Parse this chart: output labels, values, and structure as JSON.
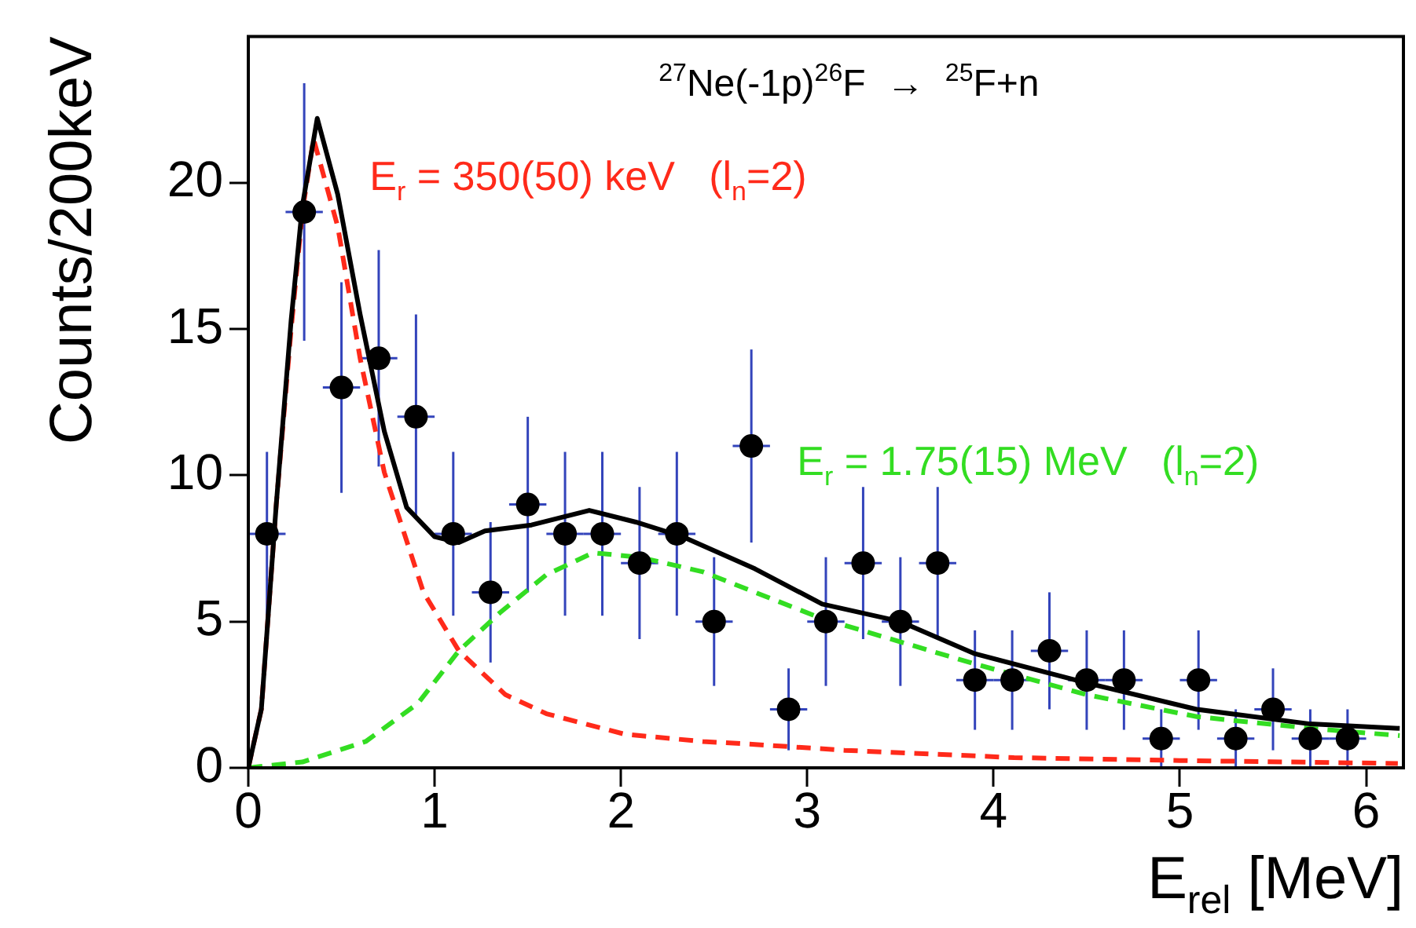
{
  "chart_data": {
    "type": "scatter",
    "title": "$^{27}$Ne(-1p)$^{26}$F  →  $^{25}$F+n",
    "xlabel": "E$_{rel}$ [MeV]",
    "ylabel": "Counts/200keV",
    "xlim": [
      0,
      6.2
    ],
    "ylim": [
      0,
      25
    ],
    "xticks": [
      0,
      1,
      2,
      3,
      4,
      5,
      6
    ],
    "yticks": [
      0,
      5,
      10,
      15,
      20
    ],
    "grid": false,
    "series": [
      {
        "type": "scatter",
        "marker": "circle",
        "color": "#000000",
        "x": [
          0.1,
          0.3,
          0.5,
          0.7,
          0.9,
          1.1,
          1.3,
          1.5,
          1.7,
          1.9,
          2.1,
          2.3,
          2.5,
          2.7,
          2.9,
          3.1,
          3.3,
          3.5,
          3.7,
          3.9,
          4.1,
          4.3,
          4.5,
          4.7,
          4.9,
          5.1,
          5.3,
          5.5,
          5.7,
          5.9
        ],
        "values": [
          8,
          19,
          13,
          14,
          12,
          8,
          6,
          9,
          8,
          8,
          7,
          8,
          5,
          11,
          2,
          5,
          7,
          5,
          7,
          3,
          3,
          4,
          3,
          3,
          1,
          3,
          1,
          2,
          1,
          1
        ],
        "errors": [
          2.8,
          4.4,
          3.6,
          3.7,
          3.5,
          2.8,
          2.4,
          3,
          2.8,
          2.8,
          2.6,
          2.8,
          2.2,
          3.3,
          1.4,
          2.2,
          2.6,
          2.2,
          2.6,
          1.7,
          1.7,
          2,
          1.7,
          1.7,
          1,
          1.7,
          1,
          1.4,
          1,
          1
        ],
        "xerrors": [
          0.1,
          0.1,
          0.1,
          0.1,
          0.1,
          0.1,
          0.1,
          0.1,
          0.1,
          0.1,
          0.1,
          0.1,
          0.1,
          0.1,
          0.1,
          0.1,
          0.1,
          0.1,
          0.1,
          0.1,
          0.1,
          0.1,
          0.1,
          0.1,
          0.1,
          0.1,
          0.1,
          0.1,
          0.1,
          0.1
        ]
      },
      {
        "type": "line",
        "line_style": "solid",
        "color": "#000000",
        "x": [
          0,
          0.07,
          0.15,
          0.23,
          0.29,
          0.37,
          0.48,
          0.6,
          0.73,
          0.85,
          1.0,
          1.13,
          1.27,
          1.52,
          1.83,
          2.08,
          2.33,
          2.72,
          3.08,
          3.5,
          3.9,
          4.5,
          5.09,
          5.7,
          6.18
        ],
        "values": [
          0,
          2,
          9,
          15.3,
          19.2,
          22.2,
          19.6,
          15.5,
          11.5,
          8.9,
          7.9,
          7.7,
          8.1,
          8.3,
          8.8,
          8.4,
          7.9,
          6.8,
          5.6,
          5.0,
          3.9,
          2.9,
          2.0,
          1.5,
          1.35
        ]
      },
      {
        "type": "line",
        "line_style": "dashed",
        "name": "E$_{r}$ = 350(50) keV   (l$_{n}$=2)",
        "color": "#ff2a1a",
        "x": [
          0,
          0.07,
          0.15,
          0.23,
          0.29,
          0.35,
          0.48,
          0.6,
          0.73,
          0.94,
          1.13,
          1.38,
          1.6,
          2.02,
          2.44,
          2.72,
          3.2,
          4.11,
          5.0,
          6.17
        ],
        "values": [
          0,
          2,
          9,
          15,
          19,
          21.5,
          18.5,
          14,
          10.1,
          6.0,
          4.0,
          2.5,
          1.85,
          1.15,
          0.9,
          0.8,
          0.6,
          0.35,
          0.25,
          0.15
        ]
      },
      {
        "type": "line",
        "line_style": "dashed",
        "name": "E$_{r}$ = 1.75(15) MeV   (l$_{n}$=2)",
        "color": "#33dd22",
        "x": [
          0,
          0.29,
          0.63,
          0.91,
          1.13,
          1.35,
          1.6,
          1.85,
          2.1,
          2.44,
          3.08,
          3.9,
          4.5,
          5.09,
          5.7,
          6.18
        ],
        "values": [
          0,
          0.2,
          0.9,
          2.2,
          4.0,
          5.3,
          6.6,
          7.35,
          7.2,
          6.7,
          5.1,
          3.55,
          2.5,
          1.75,
          1.35,
          1.1
        ]
      }
    ]
  }
}
